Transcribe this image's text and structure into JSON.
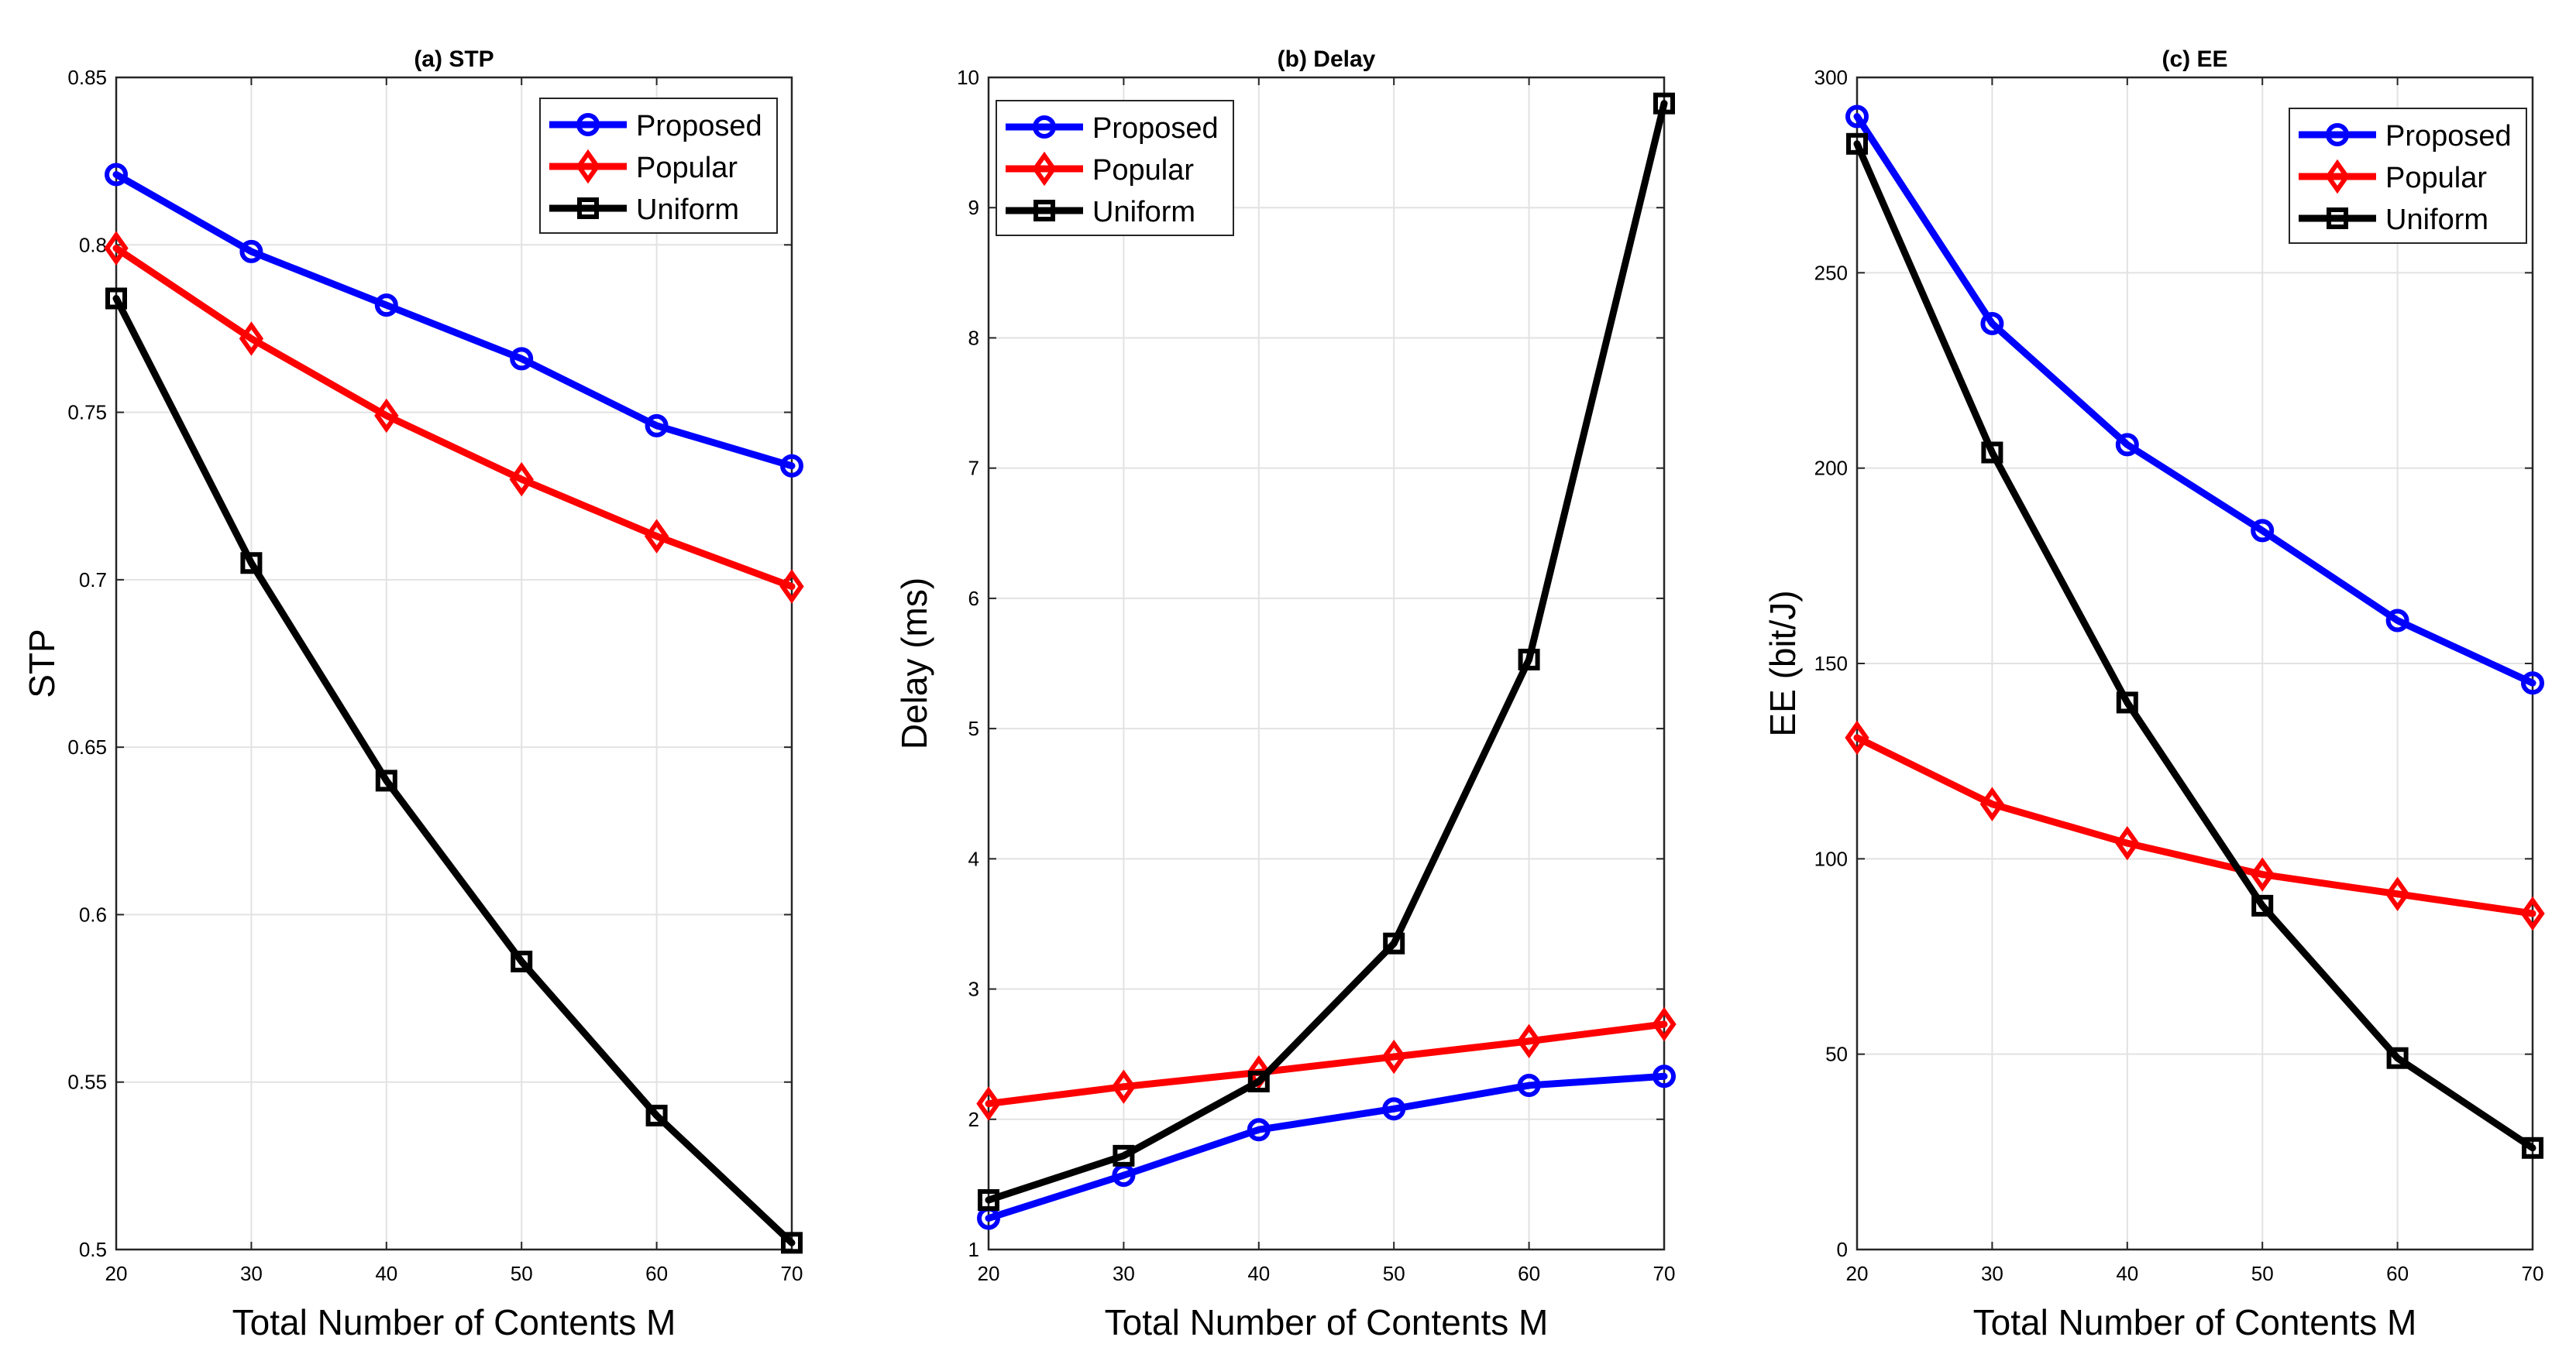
{
  "chart_data": [
    {
      "type": "line",
      "title": "(a) STP",
      "xlabel": "Total Number of Contents M",
      "ylabel": "STP",
      "x": [
        20,
        30,
        40,
        50,
        60,
        70
      ],
      "xlim": [
        20,
        70
      ],
      "ylim": [
        0.5,
        0.85
      ],
      "xticks": [
        "20",
        "30",
        "40",
        "50",
        "60",
        "70"
      ],
      "yticks": [
        "0.5",
        "0.55",
        "0.6",
        "0.65",
        "0.7",
        "0.75",
        "0.8",
        "0.85"
      ],
      "grid": true,
      "legend_position": "top-right",
      "series": [
        {
          "name": "Proposed",
          "color": "#0000ff",
          "marker": "circle",
          "values": [
            0.821,
            0.798,
            0.782,
            0.766,
            0.746,
            0.734
          ]
        },
        {
          "name": "Popular",
          "color": "#ff0000",
          "marker": "diamond",
          "values": [
            0.799,
            0.772,
            0.749,
            0.73,
            0.713,
            0.698
          ]
        },
        {
          "name": "Uniform",
          "color": "#000000",
          "marker": "square",
          "values": [
            0.784,
            0.705,
            0.64,
            0.586,
            0.54,
            0.502
          ]
        }
      ]
    },
    {
      "type": "line",
      "title": "(b) Delay",
      "xlabel": "Total Number of Contents M",
      "ylabel": "Delay (ms)",
      "x": [
        20,
        30,
        40,
        50,
        60,
        70
      ],
      "xlim": [
        20,
        70
      ],
      "ylim": [
        1,
        10
      ],
      "xticks": [
        "20",
        "30",
        "40",
        "50",
        "60",
        "70"
      ],
      "yticks": [
        "1",
        "2",
        "3",
        "4",
        "5",
        "6",
        "7",
        "8",
        "9",
        "10"
      ],
      "grid": true,
      "legend_position": "top-left",
      "series": [
        {
          "name": "Proposed",
          "color": "#0000ff",
          "marker": "circle",
          "values": [
            1.24,
            1.57,
            1.92,
            2.08,
            2.26,
            2.33
          ]
        },
        {
          "name": "Popular",
          "color": "#ff0000",
          "marker": "diamond",
          "values": [
            2.12,
            2.25,
            2.36,
            2.48,
            2.6,
            2.73
          ]
        },
        {
          "name": "Uniform",
          "color": "#000000",
          "marker": "square",
          "values": [
            1.38,
            1.72,
            2.29,
            3.35,
            5.53,
            9.8
          ]
        }
      ]
    },
    {
      "type": "line",
      "title": "(c) EE",
      "xlabel": "Total Number of Contents M",
      "ylabel": "EE (bit/J)",
      "x": [
        20,
        30,
        40,
        50,
        60,
        70
      ],
      "xlim": [
        20,
        70
      ],
      "ylim": [
        0,
        300
      ],
      "xticks": [
        "20",
        "30",
        "40",
        "50",
        "60",
        "70"
      ],
      "yticks": [
        "0",
        "50",
        "100",
        "150",
        "200",
        "250",
        "300"
      ],
      "grid": true,
      "legend_position": "top-right",
      "series": [
        {
          "name": "Proposed",
          "color": "#0000ff",
          "marker": "circle",
          "values": [
            290,
            237,
            206,
            184,
            161,
            145
          ]
        },
        {
          "name": "Popular",
          "color": "#ff0000",
          "marker": "diamond",
          "values": [
            131,
            114,
            104,
            96,
            91,
            86
          ]
        },
        {
          "name": "Uniform",
          "color": "#000000",
          "marker": "square",
          "values": [
            283,
            204,
            140,
            88,
            49,
            26
          ]
        }
      ]
    }
  ]
}
